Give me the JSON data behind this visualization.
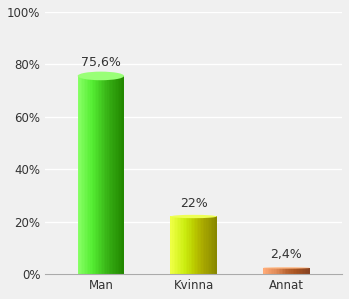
{
  "categories": [
    "Man",
    "Kvinna",
    "Annat"
  ],
  "values": [
    75.6,
    22.0,
    2.4
  ],
  "labels": [
    "75,6%",
    "22%",
    "2,4%"
  ],
  "bar_colors_top": [
    "#55dd33",
    "#ccdd00",
    "#cc8855"
  ],
  "bar_colors_main": [
    "#44cc22",
    "#bbcc00",
    "#bb7744"
  ],
  "bar_colors_side": [
    "#33aa11",
    "#99aa00",
    "#996633"
  ],
  "background_color": "#f0f0f0",
  "ylim": [
    0,
    100
  ],
  "yticks": [
    0,
    20,
    40,
    60,
    80,
    100
  ],
  "ytick_labels": [
    "0%",
    "20%",
    "40%",
    "60%",
    "80%",
    "100%"
  ],
  "label_fontsize": 9,
  "tick_fontsize": 8.5,
  "bar_width": 0.5
}
